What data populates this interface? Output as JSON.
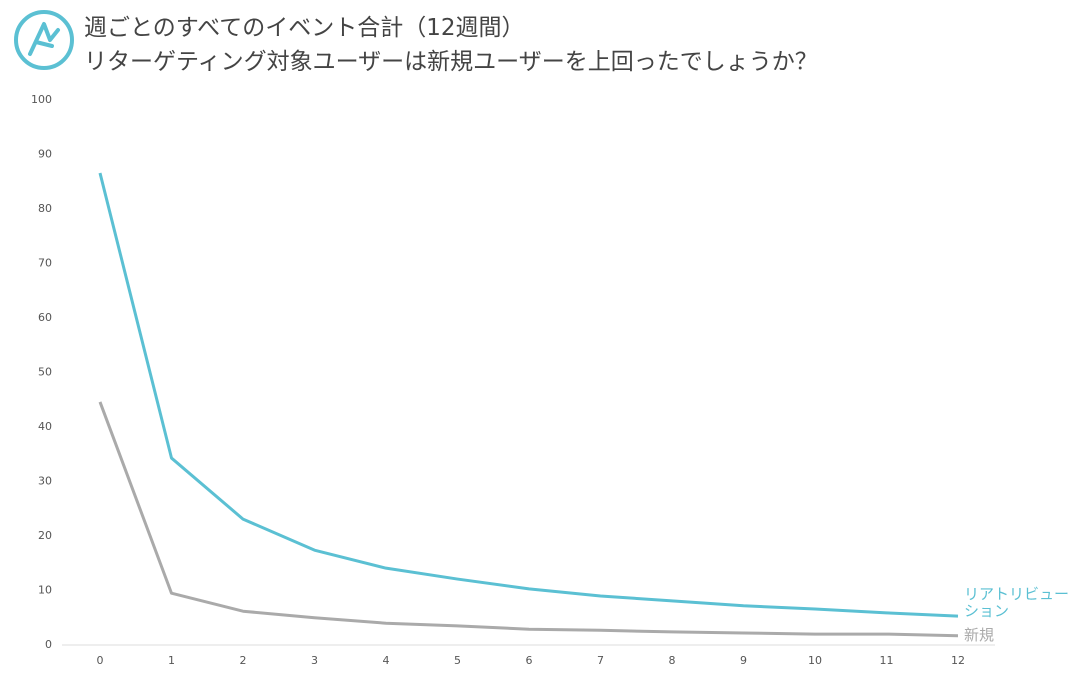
{
  "chart_data": {
    "type": "line",
    "title": "週ごとのすべてのイベント合計（12週間）",
    "subtitle": "リターゲティング対象ユーザーは新規ユーザーを上回ったでしょうか？",
    "x": [
      0,
      1,
      2,
      3,
      4,
      5,
      6,
      7,
      8,
      9,
      10,
      11,
      12
    ],
    "xlim": [
      0,
      12
    ],
    "xticks": [
      0,
      1,
      2,
      3,
      4,
      5,
      6,
      7,
      8,
      9,
      10,
      11,
      12
    ],
    "ylim": [
      0,
      100
    ],
    "yticks": [
      0,
      10,
      20,
      30,
      40,
      50,
      60,
      70,
      80,
      90,
      100
    ],
    "grid": false,
    "series": [
      {
        "name": "リアトリビューション",
        "color": "#5bc0d3",
        "values": [
          86.6,
          34.3,
          23.1,
          17.4,
          14.1,
          12.1,
          10.3,
          9.0,
          8.1,
          7.2,
          6.6,
          5.9,
          5.3
        ]
      },
      {
        "name": "新規",
        "color": "#aaaaaa",
        "values": [
          44.6,
          9.5,
          6.2,
          5.0,
          4.0,
          3.5,
          2.9,
          2.7,
          2.4,
          2.2,
          2.0,
          2.0,
          1.7
        ]
      }
    ]
  }
}
